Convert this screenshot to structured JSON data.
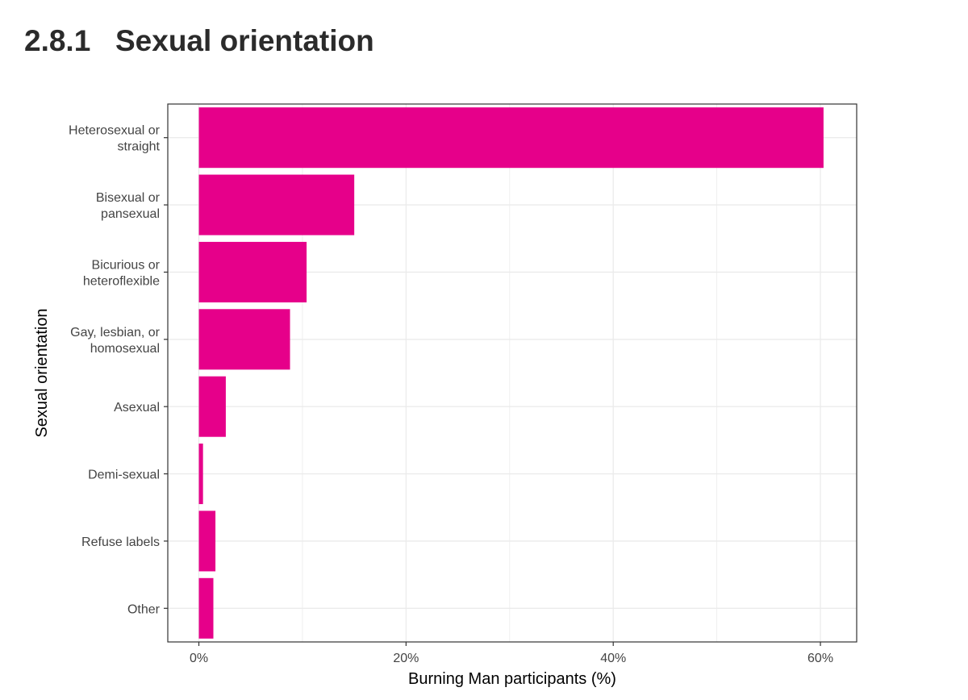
{
  "page": {
    "section_number": "2.8.1",
    "section_title": "Sexual orientation"
  },
  "chart_data": {
    "type": "bar",
    "orientation": "horizontal",
    "title": "",
    "xlabel": "Burning Man participants (%)",
    "ylabel": "Sexual orientation",
    "categories": [
      [
        "Heterosexual or",
        "straight"
      ],
      [
        "Bisexual or",
        "pansexual"
      ],
      [
        "Bicurious or",
        "heteroflexible"
      ],
      [
        "Gay, lesbian, or",
        "homosexual"
      ],
      [
        "Asexual"
      ],
      [
        "Demi-sexual"
      ],
      [
        "Refuse labels"
      ],
      [
        "Other"
      ]
    ],
    "values": [
      60.3,
      15.0,
      10.4,
      8.8,
      2.6,
      0.4,
      1.6,
      1.4
    ],
    "xlim": [
      -3,
      63.5
    ],
    "xticks": [
      0,
      20,
      40,
      60
    ],
    "xtick_labels": [
      "0%",
      "20%",
      "40%",
      "60%"
    ],
    "grid": true,
    "bar_color": "#e6008a",
    "grid_color": "#ebebeb"
  }
}
